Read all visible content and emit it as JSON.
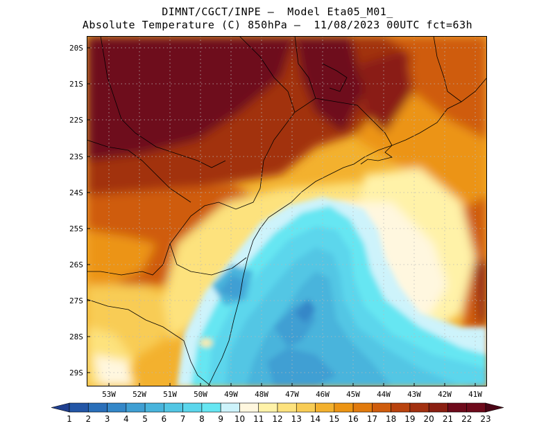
{
  "header": {
    "line1": "DIMNT/CGCT/INPE –  Model Eta05_M01_",
    "line2": "Absolute Temperature (C) 850hPa –  11/08/2023 00UTC fct=63h"
  },
  "map": {
    "lat_labels": [
      "20S",
      "21S",
      "22S",
      "23S",
      "24S",
      "25S",
      "26S",
      "27S",
      "28S",
      "29S"
    ],
    "lon_labels": [
      "53W",
      "52W",
      "51W",
      "50W",
      "49W",
      "48W",
      "47W",
      "46W",
      "45W",
      "44W",
      "43W",
      "42W",
      "41W"
    ],
    "extent": {
      "lon_min": -53.7,
      "lon_max": -40.6,
      "lat_min": -29.4,
      "lat_max": -19.8
    }
  },
  "colorbar": {
    "labels": [
      "1",
      "2",
      "3",
      "4",
      "5",
      "6",
      "7",
      "8",
      "9",
      "10",
      "11",
      "12",
      "13",
      "14",
      "15",
      "16",
      "17",
      "18",
      "19",
      "20",
      "21",
      "22",
      "23"
    ],
    "colors": [
      "#1f3f8f",
      "#2356a6",
      "#2a6fb9",
      "#3487c8",
      "#3f9fd3",
      "#48b4dc",
      "#52c6e4",
      "#5bd6ec",
      "#66e6f2",
      "#cdf3fb",
      "#fff7df",
      "#fff2a8",
      "#fde27d",
      "#f8cc55",
      "#f3b12e",
      "#ec9413",
      "#e17a0d",
      "#cf5c0c",
      "#b9430e",
      "#a23010",
      "#8a1f12",
      "#6e0a1b"
    ]
  }
}
